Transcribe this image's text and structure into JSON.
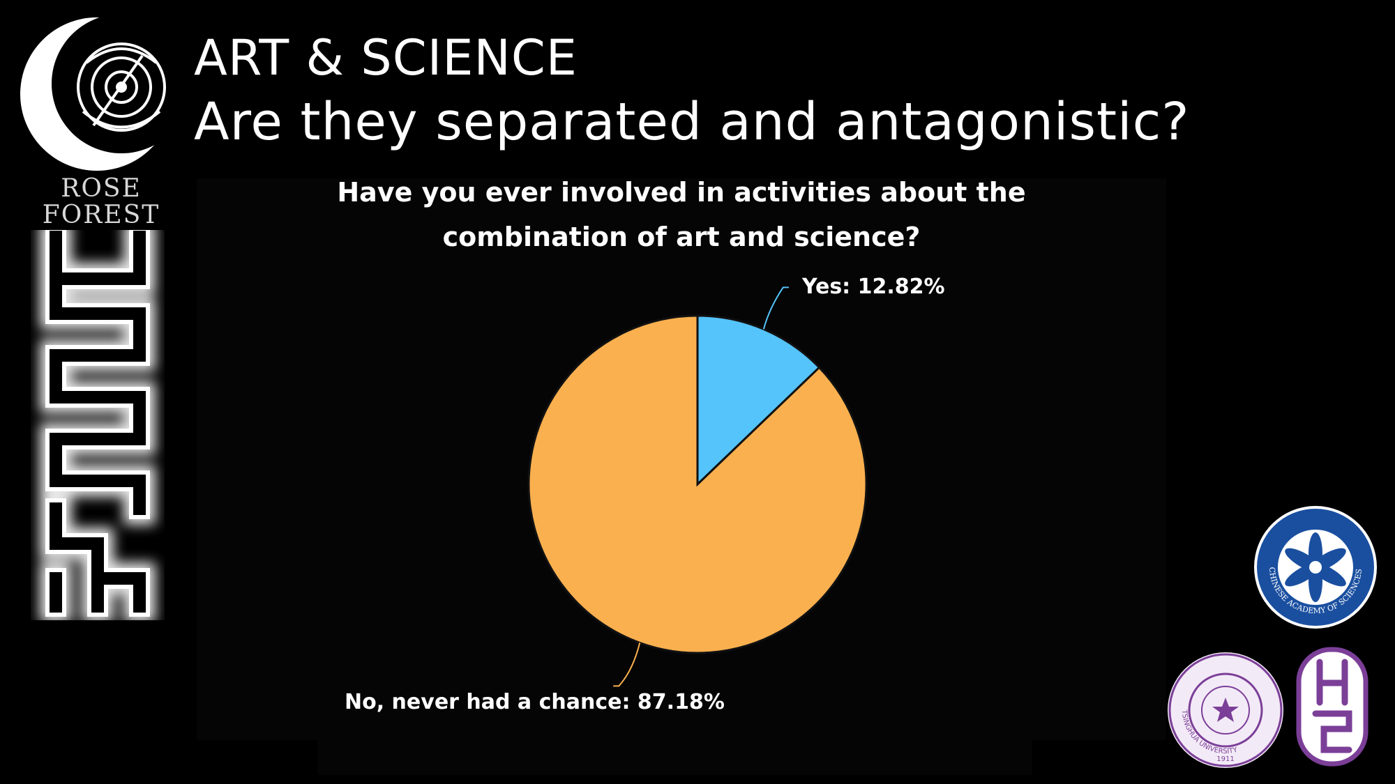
{
  "header": {
    "title_line1": "ART & SCIENCE",
    "title_line2": "Are they separated and antagonistic?"
  },
  "logos": {
    "rose_forest_word1": "ROSE",
    "rose_forest_word2": "FOREST",
    "cas_ring_text": "CHINESE ACADEMY OF SCIENCES",
    "tsinghua_ring_text": "TSINGHUA UNIVERSITY",
    "tsinghua_year": "1911"
  },
  "colors": {
    "background": "#000000",
    "slice_yes": "#55c4fa",
    "slice_no": "#fbb04f",
    "cas_blue": "#1a4fa0",
    "tsinghua_purple": "#7b3f98"
  },
  "chart_data": {
    "type": "pie",
    "title_line1": "Have you ever involved in activities about the",
    "title_line2": "combination of art and science?",
    "slices": [
      {
        "label": "Yes",
        "value": 12.82,
        "display": "Yes: 12.82%",
        "color": "#55c4fa"
      },
      {
        "label": "No, never had a chance",
        "value": 87.18,
        "display": "No, never had a chance: 87.18%",
        "color": "#fbb04f"
      }
    ],
    "start_angle_deg": 0,
    "direction": "clockwise",
    "legend": "none"
  }
}
